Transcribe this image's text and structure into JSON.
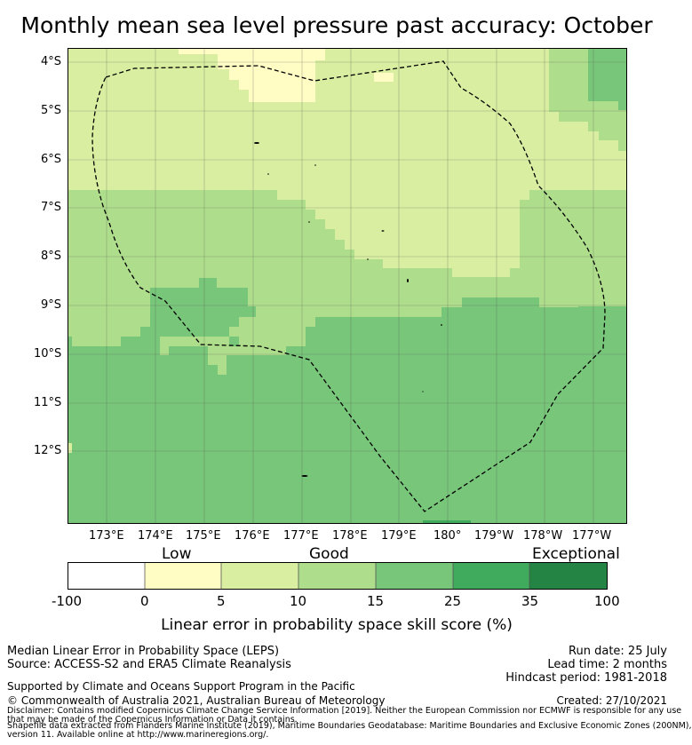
{
  "title": "Monthly mean sea level pressure past accuracy: October",
  "map": {
    "lat_labels": [
      "4°S",
      "5°S",
      "6°S",
      "7°S",
      "8°S",
      "9°S",
      "10°S",
      "11°S",
      "12°S"
    ],
    "lon_labels": [
      "173°E",
      "174°E",
      "175°E",
      "176°E",
      "177°E",
      "178°E",
      "179°E",
      "180°",
      "179°W",
      "178°W",
      "177°W"
    ],
    "zone_colors": {
      "low": "#fffcc4",
      "good_light": "#d9eea1",
      "good": "#aede8c",
      "good_high": "#78c679",
      "exceptional": "#41ab5d",
      "exceptional_high": "#238443"
    },
    "eez_boundary_style": "dashed black line",
    "grid": true
  },
  "colorbar": {
    "categories": [
      "Low",
      "Good",
      "Exceptional"
    ],
    "ticks": [
      "-100",
      "0",
      "5",
      "10",
      "15",
      "25",
      "35",
      "100"
    ],
    "colors": [
      "#ffffff",
      "#fffcc4",
      "#d9eea1",
      "#aede8c",
      "#78c679",
      "#41ab5d",
      "#238443"
    ],
    "title": "Linear error in probability space skill score (%)"
  },
  "footer": {
    "left_line1": "Median Linear Error in Probability Space (LEPS)",
    "left_line2": "Source: ACCESS-S2 and ERA5 Climate Reanalysis",
    "right_line1": "Run date: 25 July",
    "right_line2": "Lead time: 2 months",
    "right_line3": "Hindcast period: 1981-2018",
    "support": "Supported by Climate and Oceans Support Program in the Pacific",
    "copyright": "© Commonwealth of Australia 2021, Australian Bureau of Meteorology",
    "created": "Created: 27/10/2021",
    "disclaimer_1": "Disclaimer: Contains modified Copernicus Climate Change Service Information [2019]. Neither the European Commission nor ECMWF is responsible for any use",
    "disclaimer_2": "that may be made of the Copernicus Information or Data it contains.",
    "shapefile_1": "Shapefile data extracted from Flanders Marine Institute (2019), Maritime Boundaries Geodatabase: Maritime Boundaries and Exclusive Economic Zones (200NM),",
    "shapefile_2": "version 11. Available online at http://www.marineregions.org/."
  }
}
